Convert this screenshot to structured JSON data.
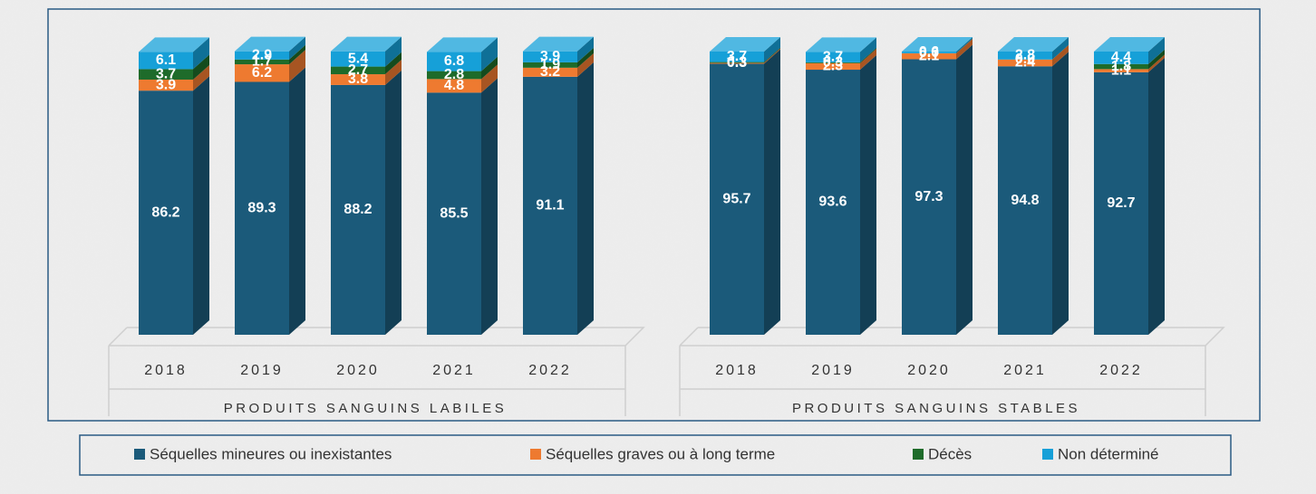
{
  "chart_data": {
    "type": "bar",
    "stacked": true,
    "groups": [
      {
        "label": "PRODUITS SANGUINS LABILES",
        "categories": [
          "2018",
          "2019",
          "2020",
          "2021",
          "2022"
        ]
      },
      {
        "label": "PRODUITS SANGUINS STABLES",
        "categories": [
          "2018",
          "2019",
          "2020",
          "2021",
          "2022"
        ]
      }
    ],
    "ylim": [
      0,
      100
    ],
    "series": [
      {
        "name": "Séquelles mineures ou inexistantes",
        "color": "#1b5a7a",
        "values": [
          86.2,
          89.3,
          88.2,
          85.5,
          91.1,
          95.7,
          93.6,
          97.3,
          94.8,
          92.7
        ]
      },
      {
        "name": "Séquelles graves ou à long terme",
        "color": "#ee7a30",
        "values": [
          3.9,
          6.2,
          3.8,
          4.8,
          3.2,
          0.3,
          2.3,
          2.1,
          2.4,
          1.1
        ]
      },
      {
        "name": "Décès",
        "color": "#1e6b2a",
        "values": [
          3.7,
          1.7,
          2.7,
          2.8,
          1.9,
          0.3,
          0.3,
          0,
          0,
          1.8
        ],
        "value_labels": [
          "3.7",
          "1.7",
          "2.7",
          "2.8",
          "1.9",
          "0.3",
          "0.3",
          "0.0",
          "0.0",
          "1.8"
        ]
      },
      {
        "name": "Non déterminé",
        "color": "#16a0d8",
        "values": [
          6.1,
          2.9,
          5.4,
          6.8,
          3.9,
          3.7,
          3.7,
          0.6,
          2.8,
          4.4
        ]
      }
    ],
    "legend": "bottom"
  }
}
